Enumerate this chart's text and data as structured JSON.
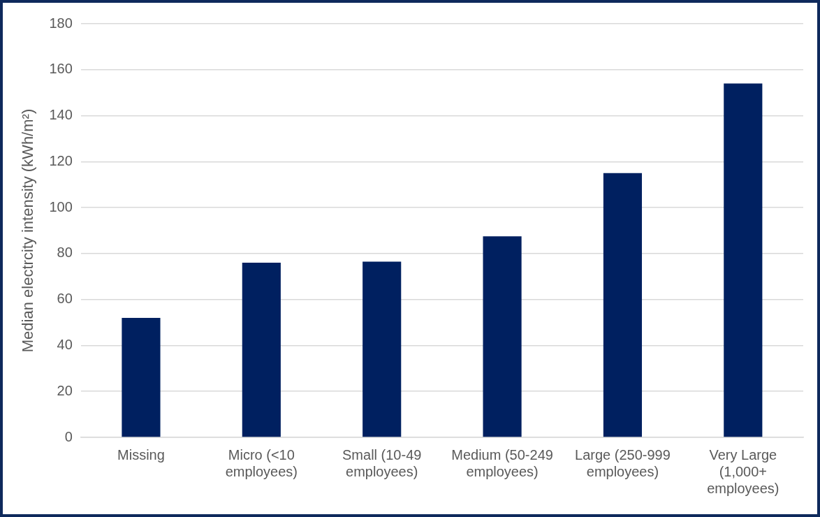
{
  "chart_data": {
    "type": "bar",
    "ylabel": "Median electrcity intensity (kWh/m²)",
    "categories": [
      "Missing",
      "Micro (<10 employees)",
      "Small (10-49 employees)",
      "Medium (50-249 employees)",
      "Large (250-999 employees)",
      "Very Large (1,000+ employees)"
    ],
    "values": [
      52,
      76,
      76.5,
      87.5,
      115,
      154
    ],
    "color": "#002060",
    "ylim": [
      0,
      180
    ],
    "yticks": [
      0,
      20,
      40,
      60,
      80,
      100,
      120,
      140,
      160,
      180
    ],
    "grid": "y"
  }
}
